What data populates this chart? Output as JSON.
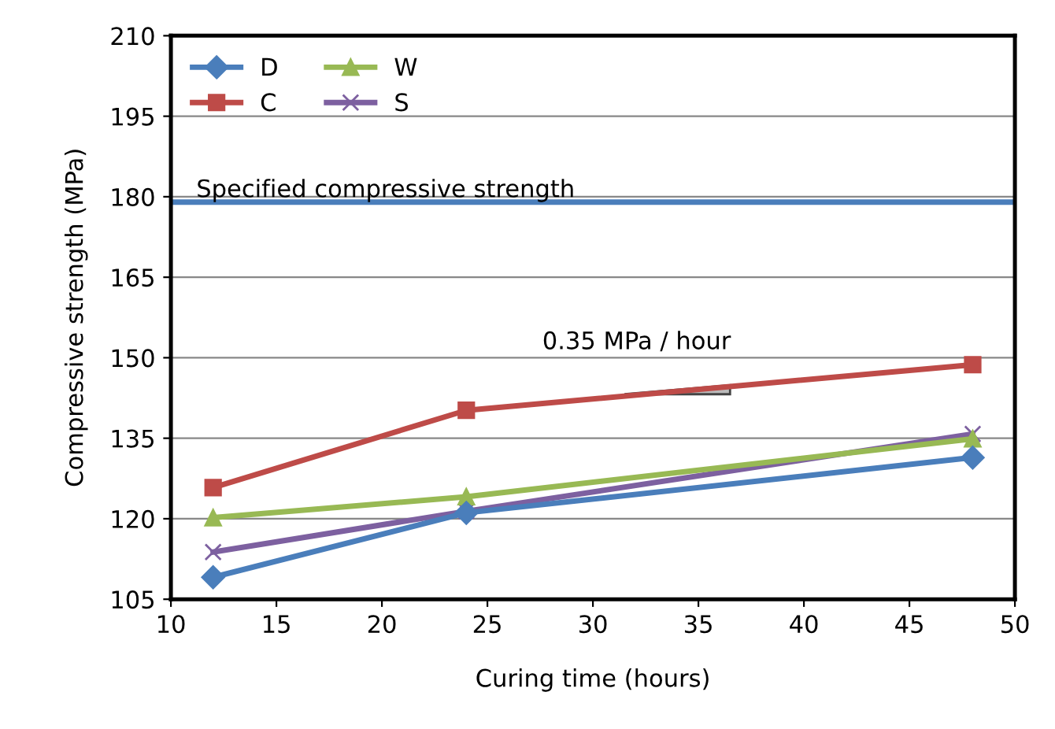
{
  "chart_data": {
    "type": "line",
    "xlabel": "Curing time (hours)",
    "ylabel": "Compressive strength (MPa)",
    "x": [
      12,
      24,
      48
    ],
    "series": [
      {
        "name": "D",
        "color": "#4a7ebb",
        "marker": "diamond",
        "values": [
          109.1,
          121.1,
          131.4
        ]
      },
      {
        "name": "C",
        "color": "#be4b48",
        "marker": "square",
        "values": [
          125.8,
          140.2,
          148.7
        ]
      },
      {
        "name": "W",
        "color": "#98b954",
        "marker": "triangle",
        "values": [
          120.2,
          124.1,
          134.9
        ]
      },
      {
        "name": "S",
        "color": "#7d60a0",
        "marker": "cross",
        "values": [
          113.8,
          121.4,
          135.8
        ]
      }
    ],
    "xlim": [
      10,
      50
    ],
    "xticks": [
      10,
      15,
      20,
      25,
      30,
      35,
      40,
      45,
      50
    ],
    "ylim": [
      105,
      210
    ],
    "yticks": [
      105,
      120,
      135,
      150,
      165,
      180,
      195,
      210
    ],
    "ref_lines": [
      {
        "axis": "y",
        "value": 179,
        "label": "Specified compressive strength",
        "color": "#4a7ebb"
      }
    ],
    "annotations": [
      "0.35 MPa / hour"
    ],
    "grid": "y",
    "legend": "top left",
    "line_style": "solid"
  }
}
